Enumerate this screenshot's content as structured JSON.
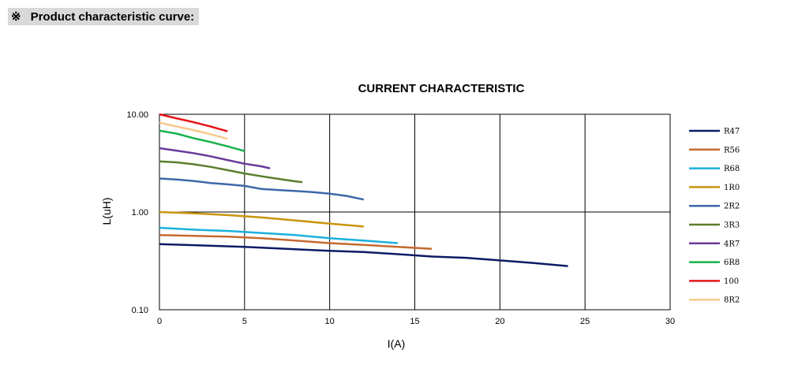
{
  "header": {
    "mark": "※",
    "title": "Product characteristic curve:"
  },
  "chart_data": {
    "type": "line",
    "title": "CURRENT CHARACTERISTIC",
    "xlabel": "I(A)",
    "ylabel": "L(uH)",
    "xlim": [
      0,
      30
    ],
    "ylim": [
      0.1,
      10
    ],
    "yscale": "log",
    "x_ticks": [
      "0",
      "5",
      "10",
      "15",
      "20",
      "25",
      "30"
    ],
    "y_ticks": [
      "0.10",
      "1.00",
      "10.00"
    ],
    "grid": true,
    "legend_position": "right",
    "series": [
      {
        "name": "R47",
        "color": "#0d1a66",
        "x": [
          0,
          5,
          10,
          12,
          14,
          16,
          18,
          20,
          22,
          24
        ],
        "y": [
          0.47,
          0.44,
          0.4,
          0.39,
          0.37,
          0.35,
          0.34,
          0.32,
          0.3,
          0.28
        ]
      },
      {
        "name": "R56",
        "color": "#c56a30",
        "x": [
          0,
          2,
          4,
          6,
          8,
          10,
          12,
          14,
          16
        ],
        "y": [
          0.58,
          0.57,
          0.56,
          0.54,
          0.51,
          0.48,
          0.46,
          0.44,
          0.42
        ]
      },
      {
        "name": "R68",
        "color": "#1ab0dc",
        "x": [
          0,
          2,
          4,
          6,
          8,
          10,
          12,
          14
        ],
        "y": [
          0.69,
          0.66,
          0.64,
          0.61,
          0.58,
          0.54,
          0.51,
          0.48
        ]
      },
      {
        "name": "1R0",
        "color": "#c9950e",
        "x": [
          0,
          2,
          4,
          6,
          8,
          10,
          12
        ],
        "y": [
          1.0,
          0.97,
          0.93,
          0.88,
          0.82,
          0.76,
          0.71
        ]
      },
      {
        "name": "2R2",
        "color": "#3d67a8",
        "x": [
          0,
          1,
          2,
          3,
          4,
          5,
          6,
          7,
          8,
          9,
          10,
          11,
          12
        ],
        "y": [
          2.2,
          2.15,
          2.08,
          1.98,
          1.92,
          1.85,
          1.72,
          1.68,
          1.64,
          1.6,
          1.54,
          1.46,
          1.34
        ]
      },
      {
        "name": "3R3",
        "color": "#5a7d2e",
        "x": [
          0,
          1,
          2,
          3,
          4,
          5,
          6,
          7,
          8,
          8.4
        ],
        "y": [
          3.3,
          3.22,
          3.08,
          2.9,
          2.68,
          2.48,
          2.32,
          2.18,
          2.06,
          2.02
        ]
      },
      {
        "name": "4R7",
        "color": "#6a3a9a",
        "x": [
          0,
          1,
          2,
          3,
          4,
          5,
          6,
          6.5
        ],
        "y": [
          4.5,
          4.25,
          4.0,
          3.72,
          3.4,
          3.12,
          2.93,
          2.8
        ]
      },
      {
        "name": "6R8",
        "color": "#16b24a",
        "x": [
          0,
          1,
          2,
          3,
          4,
          5
        ],
        "y": [
          6.8,
          6.35,
          5.7,
          5.2,
          4.7,
          4.2
        ]
      },
      {
        "name": "100",
        "color": "#e8151a",
        "x": [
          0,
          1,
          2,
          3,
          4
        ],
        "y": [
          10.0,
          9.1,
          8.3,
          7.5,
          6.7
        ]
      },
      {
        "name": "8R2",
        "color": "#f6c98a",
        "x": [
          0,
          1,
          2,
          3,
          4
        ],
        "y": [
          8.2,
          7.5,
          6.9,
          6.25,
          5.6
        ]
      }
    ]
  }
}
